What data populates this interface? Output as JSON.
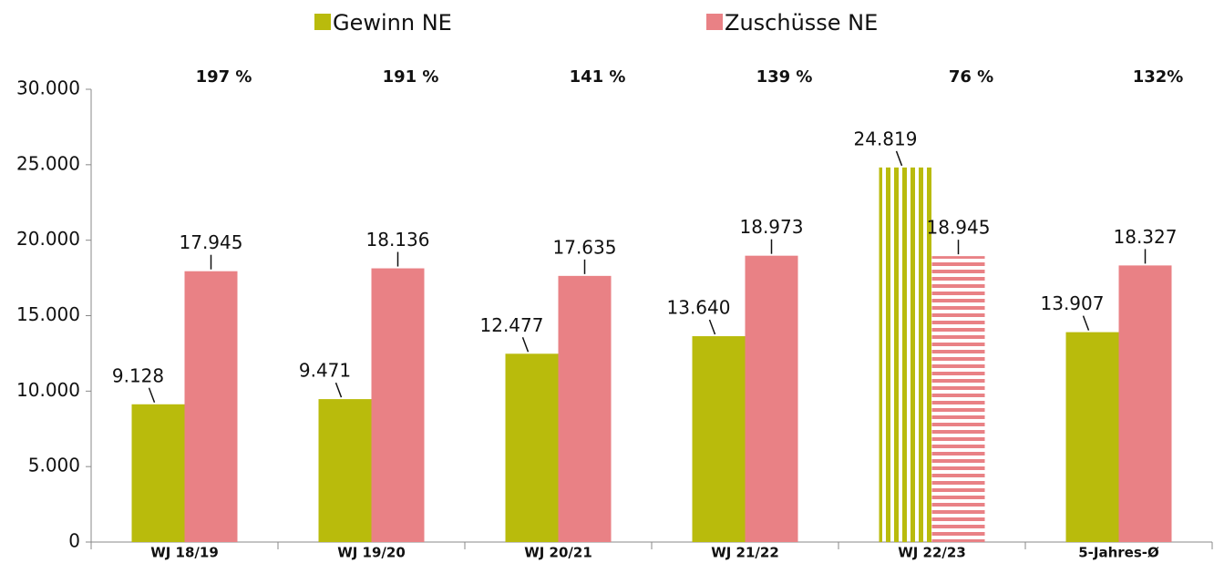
{
  "chart_data": {
    "type": "bar",
    "categories": [
      "WJ 18/19",
      "WJ 19/20",
      "WJ 20/21",
      "WJ 21/22",
      "WJ 22/23",
      "5-Jahres-Ø"
    ],
    "series": [
      {
        "name": "Gewinn NE",
        "color": "#b9bb0c",
        "values": [
          9128,
          9471,
          12477,
          13640,
          24819,
          13907
        ],
        "value_labels": [
          "9.128",
          "9.471",
          "12.477",
          "13.640",
          "24.819",
          "13.907"
        ]
      },
      {
        "name": "Zuschüsse NE",
        "color": "#e98185",
        "values": [
          17945,
          18136,
          17635,
          18973,
          18945,
          18327
        ],
        "value_labels": [
          "17.945",
          "18.136",
          "17.635",
          "18.973",
          "18.945",
          "18.327"
        ]
      }
    ],
    "ratio_labels": [
      "197 %",
      "191 %",
      "141 %",
      "139 %",
      "76 %",
      "132%"
    ],
    "hatched_category": "WJ 22/23",
    "ylim": [
      0,
      30000
    ],
    "yticks": [
      0,
      {
        "value": 5000,
        "label": "5.000"
      },
      {
        "value": 10000,
        "label": "10.000"
      },
      {
        "value": 15000,
        "label": "15.000"
      },
      {
        "value": 20000,
        "label": "20.000"
      },
      {
        "value": 25000,
        "label": "25.000"
      },
      {
        "value": 30000,
        "label": "30.000"
      }
    ],
    "grid": false
  }
}
